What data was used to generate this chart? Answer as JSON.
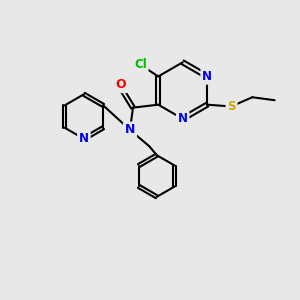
{
  "background_color": "#e8e8e8",
  "bond_color": "#000000",
  "atom_colors": {
    "N": "#0000ee",
    "O": "#ff0000",
    "Cl": "#00bb00",
    "S": "#ccaa00",
    "C": "#000000"
  },
  "figsize": [
    3.0,
    3.0
  ],
  "dpi": 100
}
